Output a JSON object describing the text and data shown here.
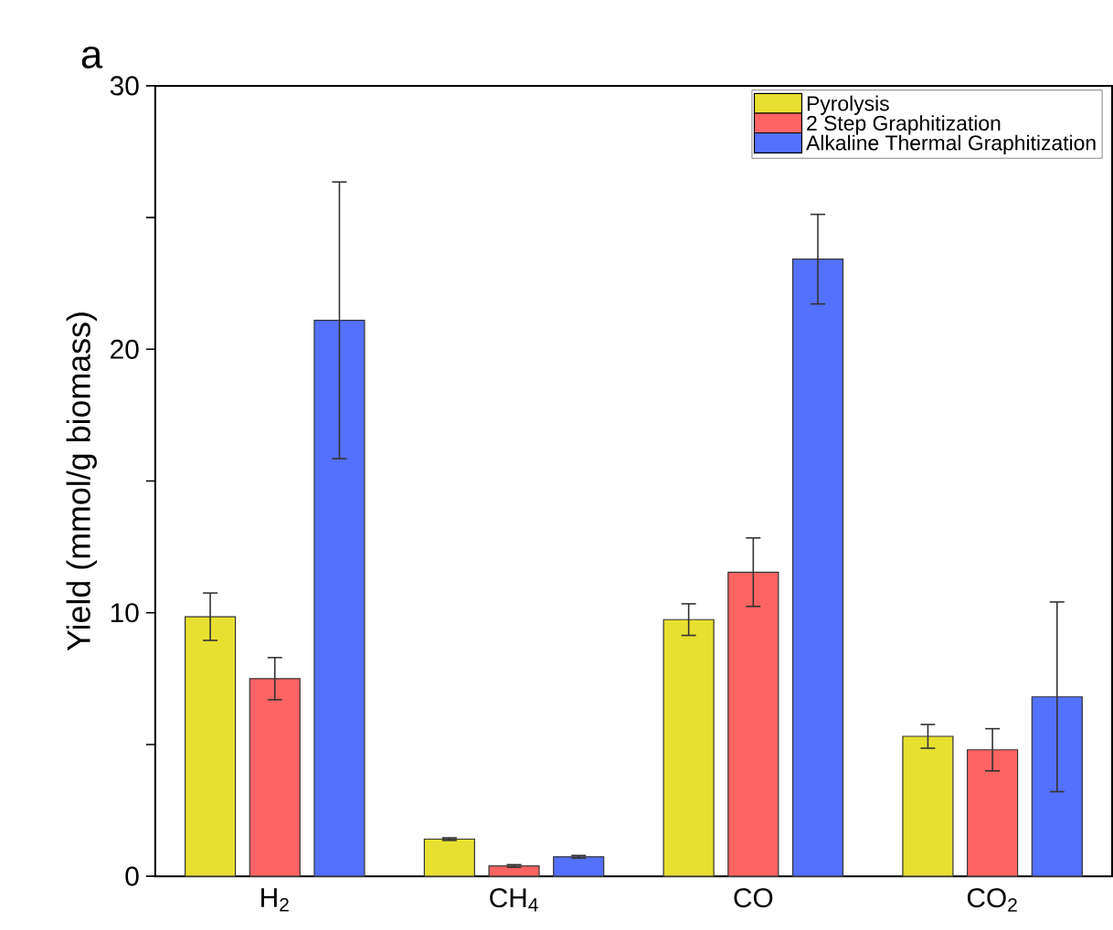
{
  "chart_data": {
    "type": "bar",
    "title": "a",
    "ylabel": "Yield (mmol/g biomass)",
    "categories": [
      "H$_{2}$",
      "CH$_{4}$",
      "CO",
      "CO$_{2}$"
    ],
    "series": [
      {
        "name": "Pyrolysis",
        "color": "#e8e030",
        "values": [
          9.85,
          1.41,
          9.74,
          5.31
        ],
        "errors": [
          0.9,
          0.05,
          0.6,
          0.45
        ]
      },
      {
        "name": "2 Step Graphitization",
        "color": "#ff6464",
        "values": [
          7.5,
          0.39,
          11.54,
          4.8
        ],
        "errors": [
          0.8,
          0.05,
          1.3,
          0.8
        ]
      },
      {
        "name": "Alkaline Thermal Graphitization",
        "color": "#5470ff",
        "values": [
          21.1,
          0.74,
          23.42,
          6.81
        ],
        "errors": [
          5.25,
          0.05,
          1.7,
          3.6
        ]
      }
    ],
    "ylim": [
      0,
      30
    ],
    "yticks": [
      0,
      {
        "value": 5,
        "label": null
      },
      10,
      {
        "value": 15,
        "label": null
      },
      20,
      {
        "value": 25,
        "label": null
      },
      30
    ],
    "grid": false,
    "legend": "top right"
  }
}
